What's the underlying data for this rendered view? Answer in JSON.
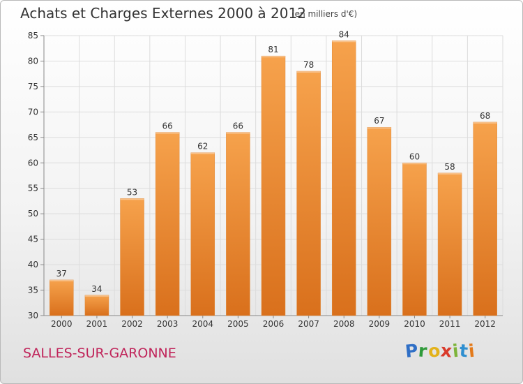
{
  "chart_data": {
    "type": "bar",
    "title": "Achats et Charges Externes 2000 à 2012",
    "subtitle": "(en milliers d'€)",
    "categories": [
      "2000",
      "2001",
      "2002",
      "2003",
      "2004",
      "2005",
      "2006",
      "2007",
      "2008",
      "2009",
      "2010",
      "2011",
      "2012"
    ],
    "values": [
      37,
      34,
      53,
      66,
      62,
      66,
      81,
      78,
      84,
      67,
      60,
      58,
      68
    ],
    "ylim": [
      30,
      85
    ],
    "yticks": [
      30,
      35,
      40,
      45,
      50,
      55,
      60,
      65,
      70,
      75,
      80,
      85
    ],
    "grid": true,
    "bar_color": "#f0923a"
  },
  "commune": "SALLES-SUR-GARONNE",
  "logo": {
    "letters": [
      "P",
      "r",
      "o",
      "x",
      "i",
      "t",
      "i"
    ],
    "colors": [
      "#2f6fc6",
      "#2f9a3a",
      "#e3b21a",
      "#d93a2b",
      "#7db43a",
      "#2f8fd0",
      "#e37a1a"
    ]
  }
}
